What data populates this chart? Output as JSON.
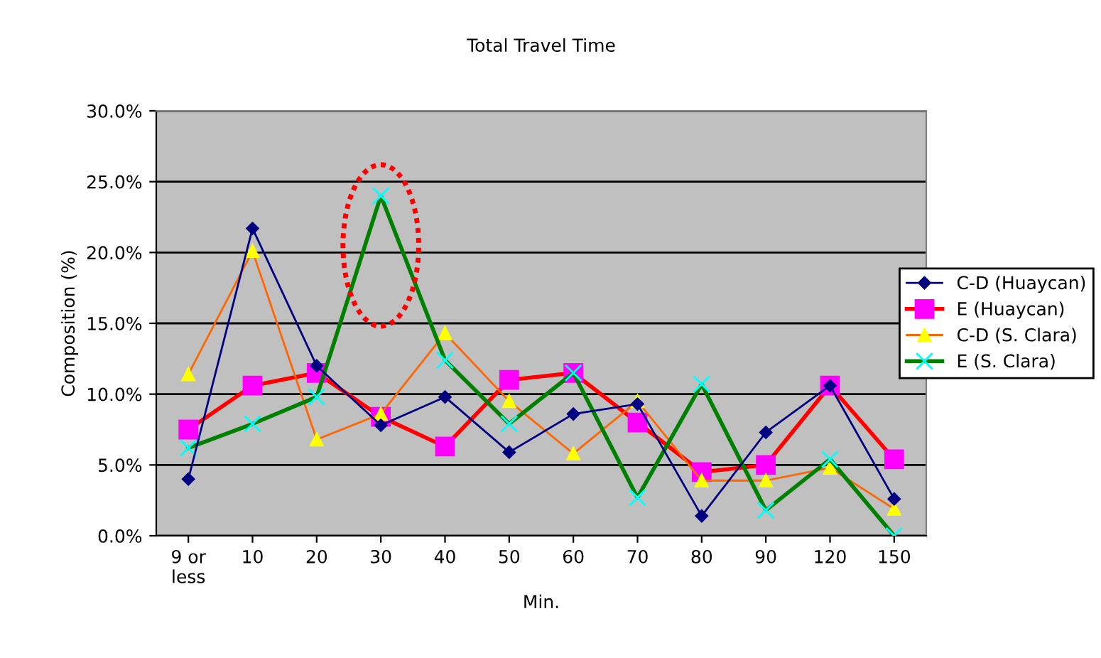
{
  "chart_data": {
    "type": "line",
    "title": "Total Travel Time",
    "xlabel": "Min.",
    "ylabel": "Composition (%)",
    "categories": [
      "9 or\nless",
      "10",
      "20",
      "30",
      "40",
      "50",
      "60",
      "70",
      "80",
      "90",
      "120",
      "150"
    ],
    "series": [
      {
        "name": "C-D (Huaycan)",
        "color": "#000080",
        "marker": "diamond",
        "values": [
          4.0,
          21.7,
          12.0,
          7.8,
          9.8,
          5.9,
          8.6,
          9.3,
          1.4,
          7.3,
          10.6,
          2.6
        ]
      },
      {
        "name": "E (Huaycan)",
        "color": "#ff0000",
        "marker": "square",
        "values": [
          7.5,
          10.6,
          11.5,
          8.4,
          6.3,
          11.0,
          11.5,
          8.0,
          4.5,
          5.0,
          10.6,
          5.4
        ]
      },
      {
        "name": "C-D (S. Clara)",
        "color": "#ff6600",
        "marker": "triangle",
        "values": [
          11.4,
          20.1,
          6.8,
          8.6,
          14.3,
          9.5,
          5.8,
          9.5,
          3.9,
          3.9,
          4.8,
          1.9
        ]
      },
      {
        "name": "E (S. Clara)",
        "color": "#008000",
        "marker": "cross",
        "values": [
          6.2,
          7.9,
          9.8,
          24.0,
          12.4,
          7.9,
          11.5,
          2.7,
          10.7,
          1.8,
          5.4,
          0.0
        ]
      }
    ],
    "ylim": [
      0,
      30
    ],
    "yticks": [
      {
        "value": 0,
        "label": "0.0%"
      },
      {
        "value": 5,
        "label": "5.0%"
      },
      {
        "value": 10,
        "label": "10.0%"
      },
      {
        "value": 15,
        "label": "15.0%"
      },
      {
        "value": 20,
        "label": "20.0%"
      },
      {
        "value": 25,
        "label": "25.0%"
      },
      {
        "value": 30,
        "label": "30.0%"
      }
    ],
    "grid": "y",
    "legend": "right"
  }
}
